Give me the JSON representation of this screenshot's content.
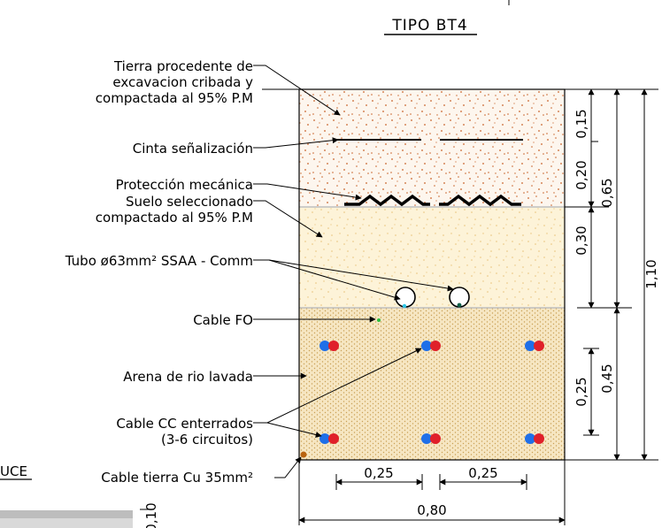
{
  "title": "TIPO BT4",
  "partial_left_label": "UCE",
  "partial_dim_label": "0,10",
  "labels": {
    "tierra_l1": "Tierra procedente de",
    "tierra_l2": "excavacion cribada y",
    "tierra_l3": "compactada al 95% P.M",
    "cinta": "Cinta señalización",
    "proteccion": "Protección mecánica",
    "suelo_l1": "Suelo seleccionado",
    "suelo_l2": "compactado al 95% P.M",
    "tubo": "Tubo ø63mm² SSAA - Comm",
    "fo": "Cable FO",
    "arena": "Arena de rio lavada",
    "cc_l1": "Cable CC enterrados",
    "cc_l2": "(3-6 circuitos)",
    "tierra_cu": "Cable tierra Cu 35mm²"
  },
  "dimensions": {
    "d015": "0,15",
    "d020": "0,20",
    "d030": "0,30",
    "d065": "0,65",
    "d025v": "0,25",
    "d045": "0,45",
    "d110": "1,10",
    "d025a": "0,25",
    "d025b": "0,25",
    "d080": "0,80"
  },
  "colors": {
    "top_fill": "#fdf6ee",
    "top_speckle": "#c8642a",
    "middle_fill": "#fdf3d8",
    "middle_speckle": "#e9c27a",
    "bottom_fill": "#f6e6c2",
    "bottom_speckle": "#c9a055",
    "cable_blue": "#1f6fe8",
    "cable_red": "#e0202a",
    "fo_green": "#2bbd3c",
    "tube_cyan": "#2ec6e8",
    "earth_orange": "#b8620f"
  }
}
